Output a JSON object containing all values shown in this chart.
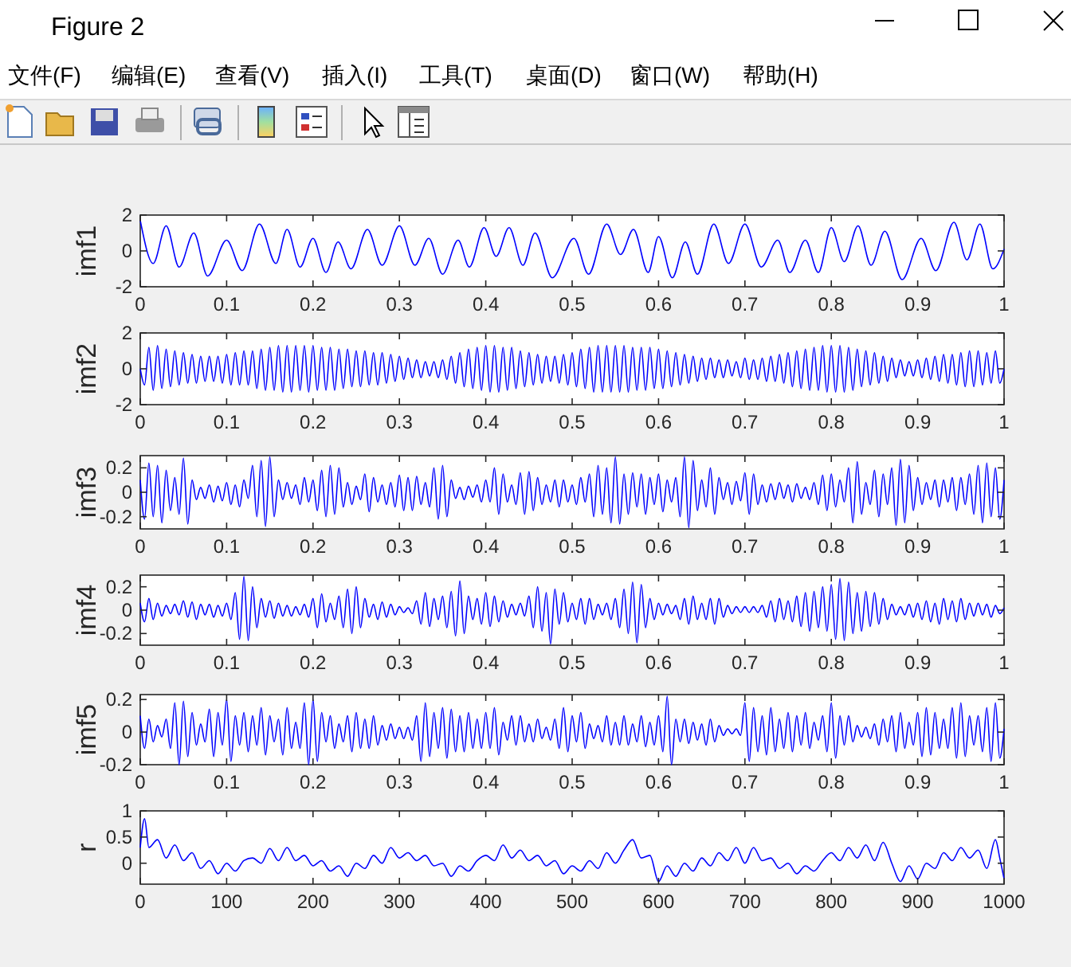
{
  "chart_data": [
    {
      "type": "other",
      "title": "Figure 2",
      "annotations": [
        "文件(F)",
        "编辑(E)",
        "查看(V)",
        "插入(I)",
        "工具(T)",
        "桌面(D)",
        "窗口(W)",
        "帮助(H)"
      ]
    },
    {
      "type": "line",
      "ylabel": "imf1",
      "color": "#0000ff",
      "xlim": [
        0,
        1
      ],
      "ylim": [
        -2,
        2
      ],
      "xticks": [
        0,
        0.1,
        0.2,
        0.3,
        0.4,
        0.5,
        0.6,
        0.7,
        0.8,
        0.9,
        1
      ],
      "yticks": [
        -2,
        0,
        2
      ],
      "x": [
        0,
        0.015,
        0.03,
        0.045,
        0.062,
        0.078,
        0.1,
        0.118,
        0.138,
        0.157,
        0.17,
        0.185,
        0.2,
        0.215,
        0.229,
        0.244,
        0.263,
        0.28,
        0.3,
        0.318,
        0.334,
        0.35,
        0.368,
        0.381,
        0.398,
        0.412,
        0.427,
        0.443,
        0.457,
        0.477,
        0.502,
        0.519,
        0.54,
        0.556,
        0.571,
        0.588,
        0.6,
        0.616,
        0.631,
        0.645,
        0.664,
        0.681,
        0.7,
        0.719,
        0.738,
        0.752,
        0.77,
        0.785,
        0.8,
        0.815,
        0.831,
        0.846,
        0.862,
        0.882,
        0.904,
        0.921,
        0.942,
        0.957,
        0.972,
        0.987,
        1
      ],
      "values": [
        1.7,
        -0.7,
        1.4,
        -0.9,
        1.0,
        -1.4,
        0.6,
        -1.1,
        1.5,
        -0.7,
        1.2,
        -0.9,
        0.7,
        -1.2,
        0.5,
        -1.0,
        1.2,
        -0.8,
        1.4,
        -0.8,
        0.7,
        -1.3,
        0.6,
        -0.9,
        1.3,
        -0.3,
        1.3,
        -0.8,
        1.0,
        -1.5,
        0.7,
        -1.3,
        1.5,
        -0.2,
        1.2,
        -1.2,
        0.8,
        -1.5,
        0.5,
        -1.3,
        1.5,
        -0.7,
        1.5,
        -0.9,
        0.6,
        -1.2,
        0.6,
        -1.2,
        1.3,
        -0.6,
        1.4,
        -0.8,
        1.1,
        -1.6,
        0.7,
        -1.1,
        1.6,
        -0.5,
        1.5,
        -1.0,
        0.1
      ]
    },
    {
      "type": "line",
      "ylabel": "imf2",
      "color": "#0000ff",
      "xlim": [
        0,
        1
      ],
      "ylim": [
        -2,
        2
      ],
      "xticks": [
        0,
        0.1,
        0.2,
        0.3,
        0.4,
        0.5,
        0.6,
        0.7,
        0.8,
        0.9,
        1
      ],
      "yticks": [
        -2,
        0,
        2
      ],
      "x": [
        0,
        0.005,
        0.01,
        0.015,
        0.02,
        0.025,
        0.03,
        0.035,
        0.04,
        0.045,
        0.05,
        0.055,
        0.06,
        0.065,
        0.07,
        0.075,
        0.08,
        0.085,
        0.09,
        0.095,
        0.1,
        0.105,
        0.11,
        0.115,
        0.12,
        0.125,
        0.13,
        0.135,
        0.14,
        0.145,
        0.15,
        0.155,
        0.16,
        0.165,
        0.17,
        0.175,
        0.18,
        0.185,
        0.19,
        0.195,
        0.2,
        0.205,
        0.21,
        0.215,
        0.22,
        0.225,
        0.23,
        0.235,
        0.24,
        0.245,
        0.25,
        0.255,
        0.26,
        0.265,
        0.27,
        0.275,
        0.28,
        0.285,
        0.29,
        0.295,
        0.3,
        0.305,
        0.31,
        0.315,
        0.32,
        0.325,
        0.33,
        0.335,
        0.34,
        0.345,
        0.35,
        0.355,
        0.36,
        0.365,
        0.37,
        0.375,
        0.38,
        0.385,
        0.39,
        0.395,
        0.4,
        0.405,
        0.41,
        0.415,
        0.42,
        0.425,
        0.43,
        0.435,
        0.44,
        0.445,
        0.45,
        0.455,
        0.46,
        0.465,
        0.47,
        0.475,
        0.48,
        0.485,
        0.49,
        0.495,
        0.5,
        0.505,
        0.51,
        0.515,
        0.52,
        0.525,
        0.53,
        0.535,
        0.54,
        0.545,
        0.55,
        0.555,
        0.56,
        0.565,
        0.57,
        0.575,
        0.58,
        0.585,
        0.59,
        0.595,
        0.6,
        0.605,
        0.61,
        0.615,
        0.62,
        0.625,
        0.63,
        0.635,
        0.64,
        0.645,
        0.65,
        0.655,
        0.66,
        0.665,
        0.67,
        0.675,
        0.68,
        0.685,
        0.69,
        0.695,
        0.7,
        0.705,
        0.71,
        0.715,
        0.72,
        0.725,
        0.73,
        0.735,
        0.74,
        0.745,
        0.75,
        0.755,
        0.76,
        0.765,
        0.77,
        0.775,
        0.78,
        0.785,
        0.79,
        0.795,
        0.8,
        0.805,
        0.81,
        0.815,
        0.82,
        0.825,
        0.83,
        0.835,
        0.84,
        0.845,
        0.85,
        0.855,
        0.86,
        0.865,
        0.87,
        0.875,
        0.88,
        0.885,
        0.89,
        0.895,
        0.9,
        0.905,
        0.91,
        0.915,
        0.92,
        0.925,
        0.93,
        0.935,
        0.94,
        0.945,
        0.95,
        0.955,
        0.96,
        0.965,
        0.97,
        0.975,
        0.98,
        0.985,
        0.99,
        0.995,
        1
      ],
      "values": [
        0,
        -0.9,
        1.2,
        -1.2,
        1.3,
        -1.1,
        1.1,
        -1.0,
        1.0,
        -0.9,
        0.9,
        -0.8,
        0.8,
        -0.8,
        0.7,
        -0.7,
        0.7,
        -0.7,
        0.7,
        -0.8,
        0.8,
        -0.9,
        0.9,
        -0.9,
        1.0,
        -0.9,
        1.0,
        -1.1,
        1.1,
        -1.2,
        1.2,
        -1.2,
        1.3,
        -1.3,
        1.3,
        -1.3,
        1.3,
        -1.2,
        1.3,
        -1.3,
        1.3,
        -1.2,
        1.2,
        -1.2,
        1.2,
        -1.2,
        1.1,
        -1.1,
        1.1,
        -1.0,
        1.0,
        -1.0,
        1.0,
        -0.9,
        0.9,
        -0.9,
        0.9,
        -0.8,
        0.8,
        -0.7,
        0.7,
        -0.6,
        0.6,
        -0.5,
        0.5,
        -0.5,
        0.4,
        -0.4,
        0.4,
        -0.5,
        0.5,
        -0.6,
        0.7,
        -0.8,
        0.9,
        -1.0,
        1.1,
        -1.1,
        1.2,
        -1.2,
        1.3,
        -1.3,
        1.3,
        -1.3,
        1.2,
        -1.2,
        1.2,
        -1.1,
        1.0,
        -1.0,
        0.9,
        -0.9,
        0.8,
        -0.8,
        0.7,
        -0.7,
        0.7,
        -0.8,
        0.8,
        -0.9,
        0.9,
        -1.0,
        1.1,
        -1.1,
        1.2,
        -1.3,
        1.3,
        -1.3,
        1.3,
        -1.3,
        1.3,
        -1.3,
        1.3,
        -1.3,
        1.2,
        -1.2,
        1.2,
        -1.2,
        1.2,
        -1.1,
        1.1,
        -1.1,
        1.0,
        -1.0,
        0.9,
        -0.9,
        0.8,
        -0.8,
        0.7,
        -0.7,
        0.6,
        -0.6,
        0.6,
        -0.5,
        0.5,
        -0.5,
        0.5,
        -0.4,
        0.4,
        -0.5,
        0.6,
        -0.6,
        0.5,
        -0.6,
        0.6,
        -0.7,
        0.7,
        -0.7,
        0.8,
        -0.8,
        0.9,
        -1.0,
        1.0,
        -1.1,
        1.1,
        -1.2,
        1.2,
        -1.2,
        1.3,
        -1.3,
        1.3,
        -1.3,
        1.3,
        -1.3,
        1.2,
        -1.2,
        1.1,
        -1.0,
        1.0,
        -0.9,
        0.9,
        -0.8,
        0.7,
        -0.7,
        0.6,
        -0.5,
        0.5,
        -0.4,
        0.4,
        -0.4,
        0.5,
        -0.5,
        0.6,
        -0.6,
        0.7,
        -0.7,
        0.8,
        -0.8,
        0.8,
        -0.9,
        0.9,
        -1.0,
        1.0,
        -1.0,
        1.0,
        -0.9,
        0.9,
        -0.8,
        1.0,
        -0.8,
        0.0
      ]
    },
    {
      "type": "line",
      "ylabel": "imf3",
      "color": "#0000ff",
      "xlim": [
        0,
        1
      ],
      "ylim": [
        -0.3,
        0.3
      ],
      "xticks": [
        0,
        0.1,
        0.2,
        0.3,
        0.4,
        0.5,
        0.6,
        0.7,
        0.8,
        0.9,
        1
      ],
      "yticks": [
        -0.2,
        0,
        0.2
      ],
      "x": [
        0,
        0.005,
        0.01,
        0.015,
        0.02,
        0.025,
        0.03,
        0.035,
        0.04,
        0.045,
        0.05,
        0.055,
        0.06,
        0.065,
        0.07,
        0.075,
        0.08,
        0.085,
        0.09,
        0.095,
        0.1,
        0.105,
        0.11,
        0.115,
        0.12,
        0.125,
        0.13,
        0.135,
        0.14,
        0.145,
        0.15,
        0.155,
        0.16,
        0.165,
        0.17,
        0.175,
        0.18,
        0.185,
        0.19,
        0.195,
        0.2,
        0.205,
        0.21,
        0.215,
        0.22,
        0.225,
        0.23,
        0.235,
        0.24,
        0.245,
        0.25,
        0.255,
        0.26,
        0.265,
        0.27,
        0.275,
        0.28,
        0.285,
        0.29,
        0.295,
        0.3,
        0.305,
        0.31,
        0.315,
        0.32,
        0.325,
        0.33,
        0.335,
        0.34,
        0.345,
        0.35,
        0.355,
        0.36,
        0.365,
        0.37,
        0.375,
        0.38,
        0.385,
        0.39,
        0.395,
        0.4,
        0.405,
        0.41,
        0.415,
        0.42,
        0.425,
        0.43,
        0.435,
        0.44,
        0.445,
        0.45,
        0.455,
        0.46,
        0.465,
        0.47,
        0.475,
        0.48,
        0.485,
        0.49,
        0.495,
        0.5,
        0.505,
        0.51,
        0.515,
        0.52,
        0.525,
        0.53,
        0.535,
        0.54,
        0.545,
        0.55,
        0.555,
        0.56,
        0.565,
        0.57,
        0.575,
        0.58,
        0.585,
        0.59,
        0.595,
        0.6,
        0.605,
        0.61,
        0.615,
        0.62,
        0.625,
        0.63,
        0.635,
        0.64,
        0.645,
        0.65,
        0.655,
        0.66,
        0.665,
        0.67,
        0.675,
        0.68,
        0.685,
        0.69,
        0.695,
        0.7,
        0.705,
        0.71,
        0.715,
        0.72,
        0.725,
        0.73,
        0.735,
        0.74,
        0.745,
        0.75,
        0.755,
        0.76,
        0.765,
        0.77,
        0.775,
        0.78,
        0.785,
        0.79,
        0.795,
        0.8,
        0.805,
        0.81,
        0.815,
        0.82,
        0.825,
        0.83,
        0.835,
        0.84,
        0.845,
        0.85,
        0.855,
        0.86,
        0.865,
        0.87,
        0.875,
        0.88,
        0.885,
        0.89,
        0.895,
        0.9,
        0.905,
        0.91,
        0.915,
        0.92,
        0.925,
        0.93,
        0.935,
        0.94,
        0.945,
        0.95,
        0.955,
        0.96,
        0.965,
        0.97,
        0.975,
        0.98,
        0.985,
        0.99,
        0.995,
        1
      ],
      "values": [
        0.1,
        -0.22,
        0.24,
        -0.2,
        0.22,
        -0.25,
        0.18,
        -0.15,
        0.12,
        -0.18,
        0.28,
        -0.26,
        0.1,
        -0.06,
        0.04,
        -0.05,
        0.06,
        -0.08,
        0.05,
        -0.07,
        0.08,
        -0.1,
        0.06,
        -0.12,
        0.1,
        -0.05,
        0.22,
        -0.2,
        0.26,
        -0.28,
        0.29,
        -0.2,
        0.1,
        -0.06,
        0.08,
        -0.05,
        0.06,
        -0.1,
        0.12,
        -0.08,
        0.1,
        -0.15,
        0.18,
        -0.2,
        0.22,
        -0.18,
        0.2,
        -0.12,
        0.08,
        -0.1,
        0.05,
        -0.06,
        0.15,
        -0.16,
        0.12,
        -0.08,
        0.06,
        -0.1,
        0.08,
        -0.12,
        0.14,
        -0.15,
        0.12,
        -0.15,
        0.13,
        -0.1,
        0.08,
        -0.12,
        0.2,
        -0.22,
        0.22,
        -0.2,
        0.1,
        -0.05,
        0.04,
        -0.06,
        0.05,
        -0.04,
        0.06,
        -0.08,
        0.1,
        -0.08,
        0.2,
        -0.18,
        0.15,
        -0.08,
        0.06,
        -0.1,
        0.16,
        -0.18,
        0.17,
        -0.15,
        0.12,
        -0.1,
        0.06,
        -0.08,
        0.1,
        -0.12,
        0.1,
        -0.08,
        0.06,
        -0.1,
        0.12,
        -0.08,
        0.15,
        -0.2,
        0.22,
        -0.18,
        0.2,
        -0.25,
        0.29,
        -0.26,
        0.15,
        -0.18,
        0.16,
        -0.12,
        0.15,
        -0.18,
        0.12,
        -0.1,
        0.15,
        -0.16,
        0.1,
        -0.08,
        0.12,
        -0.2,
        0.29,
        -0.29,
        0.26,
        -0.15,
        0.1,
        -0.12,
        0.2,
        -0.18,
        0.12,
        -0.06,
        0.08,
        -0.1,
        0.09,
        -0.07,
        0.16,
        -0.18,
        0.15,
        -0.1,
        0.06,
        -0.08,
        0.07,
        -0.06,
        0.08,
        -0.05,
        0.06,
        -0.08,
        0.07,
        -0.05,
        0.04,
        -0.06,
        0.08,
        -0.1,
        0.14,
        -0.15,
        0.15,
        -0.12,
        0.1,
        -0.08,
        0.2,
        -0.25,
        0.25,
        -0.18,
        0.08,
        -0.1,
        0.18,
        -0.2,
        0.15,
        -0.1,
        0.2,
        -0.27,
        0.27,
        -0.25,
        0.22,
        -0.15,
        0.12,
        -0.1,
        0.08,
        -0.06,
        0.1,
        -0.12,
        0.1,
        -0.08,
        0.12,
        -0.15,
        0.12,
        -0.1,
        0.15,
        -0.18,
        0.22,
        -0.25,
        0.24,
        -0.2,
        0.2,
        -0.22,
        0.1
      ]
    },
    {
      "type": "line",
      "ylabel": "imf4",
      "color": "#0000ff",
      "xlim": [
        0,
        1
      ],
      "ylim": [
        -0.3,
        0.3
      ],
      "xticks": [
        0,
        0.1,
        0.2,
        0.3,
        0.4,
        0.5,
        0.6,
        0.7,
        0.8,
        0.9,
        1
      ],
      "yticks": [
        -0.2,
        0,
        0.2
      ],
      "x": [
        0,
        0.005,
        0.01,
        0.015,
        0.02,
        0.025,
        0.03,
        0.035,
        0.04,
        0.045,
        0.05,
        0.055,
        0.06,
        0.065,
        0.07,
        0.075,
        0.08,
        0.085,
        0.09,
        0.095,
        0.1,
        0.105,
        0.11,
        0.115,
        0.12,
        0.125,
        0.13,
        0.135,
        0.14,
        0.145,
        0.15,
        0.155,
        0.16,
        0.165,
        0.17,
        0.175,
        0.18,
        0.185,
        0.19,
        0.195,
        0.2,
        0.205,
        0.21,
        0.215,
        0.22,
        0.225,
        0.23,
        0.235,
        0.24,
        0.245,
        0.25,
        0.255,
        0.26,
        0.265,
        0.27,
        0.275,
        0.28,
        0.285,
        0.29,
        0.295,
        0.3,
        0.305,
        0.31,
        0.315,
        0.32,
        0.325,
        0.33,
        0.335,
        0.34,
        0.345,
        0.35,
        0.355,
        0.36,
        0.365,
        0.37,
        0.375,
        0.38,
        0.385,
        0.39,
        0.395,
        0.4,
        0.405,
        0.41,
        0.415,
        0.42,
        0.425,
        0.43,
        0.435,
        0.44,
        0.445,
        0.45,
        0.455,
        0.46,
        0.465,
        0.47,
        0.475,
        0.48,
        0.485,
        0.49,
        0.495,
        0.5,
        0.505,
        0.51,
        0.515,
        0.52,
        0.525,
        0.53,
        0.535,
        0.54,
        0.545,
        0.55,
        0.555,
        0.56,
        0.565,
        0.57,
        0.575,
        0.58,
        0.585,
        0.59,
        0.595,
        0.6,
        0.605,
        0.61,
        0.615,
        0.62,
        0.625,
        0.63,
        0.635,
        0.64,
        0.645,
        0.65,
        0.655,
        0.66,
        0.665,
        0.67,
        0.675,
        0.68,
        0.685,
        0.69,
        0.695,
        0.7,
        0.705,
        0.71,
        0.715,
        0.72,
        0.725,
        0.73,
        0.735,
        0.74,
        0.745,
        0.75,
        0.755,
        0.76,
        0.765,
        0.77,
        0.775,
        0.78,
        0.785,
        0.79,
        0.795,
        0.8,
        0.805,
        0.81,
        0.815,
        0.82,
        0.825,
        0.83,
        0.835,
        0.84,
        0.845,
        0.85,
        0.855,
        0.86,
        0.865,
        0.87,
        0.875,
        0.88,
        0.885,
        0.89,
        0.895,
        0.9,
        0.905,
        0.91,
        0.915,
        0.92,
        0.925,
        0.93,
        0.935,
        0.94,
        0.945,
        0.95,
        0.955,
        0.96,
        0.965,
        0.97,
        0.975,
        0.98,
        0.985,
        0.99,
        0.995,
        1
      ],
      "values": [
        0.06,
        -0.1,
        0.1,
        -0.08,
        0.06,
        -0.05,
        0.04,
        -0.03,
        0.05,
        -0.04,
        0.08,
        -0.06,
        0.07,
        -0.08,
        0.05,
        -0.04,
        0.05,
        -0.06,
        0.04,
        -0.05,
        0.06,
        -0.08,
        0.15,
        -0.25,
        0.29,
        -0.26,
        0.2,
        -0.15,
        0.1,
        -0.06,
        0.08,
        -0.07,
        0.06,
        -0.05,
        0.04,
        -0.05,
        0.03,
        -0.04,
        0.05,
        -0.06,
        0.1,
        -0.15,
        0.14,
        -0.1,
        0.06,
        -0.08,
        0.12,
        -0.15,
        0.18,
        -0.2,
        0.2,
        -0.15,
        0.1,
        -0.06,
        0.05,
        -0.08,
        0.07,
        -0.06,
        0.05,
        -0.04,
        0.03,
        -0.02,
        0.02,
        -0.03,
        0.08,
        -0.12,
        0.15,
        -0.14,
        0.1,
        -0.08,
        0.12,
        -0.15,
        0.16,
        -0.22,
        0.25,
        -0.2,
        0.12,
        -0.08,
        0.1,
        -0.12,
        0.15,
        -0.14,
        0.12,
        -0.1,
        0.08,
        -0.06,
        0.05,
        -0.04,
        0.06,
        -0.05,
        0.12,
        -0.15,
        0.2,
        -0.18,
        0.15,
        -0.29,
        0.18,
        -0.12,
        0.15,
        -0.1,
        0.06,
        -0.08,
        0.1,
        -0.12,
        0.1,
        -0.08,
        0.05,
        -0.04,
        0.06,
        -0.08,
        0.1,
        -0.15,
        0.18,
        -0.2,
        0.24,
        -0.28,
        0.22,
        -0.15,
        0.1,
        -0.08,
        0.06,
        -0.04,
        0.05,
        -0.03,
        0.04,
        -0.08,
        0.1,
        -0.12,
        0.12,
        -0.08,
        0.06,
        -0.08,
        0.1,
        -0.12,
        0.1,
        -0.06,
        0.04,
        -0.03,
        0.03,
        -0.02,
        0.03,
        -0.02,
        0.03,
        -0.02,
        0.04,
        -0.06,
        0.08,
        -0.1,
        0.1,
        -0.08,
        0.08,
        -0.1,
        0.12,
        -0.14,
        0.15,
        -0.18,
        0.16,
        -0.15,
        0.2,
        -0.18,
        0.22,
        -0.25,
        0.27,
        -0.26,
        0.24,
        -0.2,
        0.15,
        -0.18,
        0.16,
        -0.14,
        0.15,
        -0.12,
        0.1,
        -0.08,
        0.05,
        -0.04,
        0.03,
        -0.04,
        0.05,
        -0.06,
        0.06,
        -0.08,
        0.08,
        -0.1,
        0.06,
        -0.12,
        0.1,
        -0.08,
        0.08,
        -0.1,
        0.1,
        -0.08,
        0.06,
        -0.05,
        0.06,
        -0.04,
        0.05,
        -0.06,
        0.04,
        -0.03,
        0.02
      ]
    },
    {
      "type": "line",
      "ylabel": "imf5",
      "color": "#0000ff",
      "xlim": [
        0,
        1
      ],
      "ylim": [
        -0.2,
        0.23
      ],
      "xticks": [
        0,
        0.1,
        0.2,
        0.3,
        0.4,
        0.5,
        0.6,
        0.7,
        0.8,
        0.9,
        1
      ],
      "yticks": [
        -0.2,
        0,
        0.2
      ],
      "x": [
        0,
        0.005,
        0.01,
        0.015,
        0.02,
        0.025,
        0.03,
        0.035,
        0.04,
        0.045,
        0.05,
        0.055,
        0.06,
        0.065,
        0.07,
        0.075,
        0.08,
        0.085,
        0.09,
        0.095,
        0.1,
        0.105,
        0.11,
        0.115,
        0.12,
        0.125,
        0.13,
        0.135,
        0.14,
        0.145,
        0.15,
        0.155,
        0.16,
        0.165,
        0.17,
        0.175,
        0.18,
        0.185,
        0.19,
        0.195,
        0.2,
        0.205,
        0.21,
        0.215,
        0.22,
        0.225,
        0.23,
        0.235,
        0.24,
        0.245,
        0.25,
        0.255,
        0.26,
        0.265,
        0.27,
        0.275,
        0.28,
        0.285,
        0.29,
        0.295,
        0.3,
        0.305,
        0.31,
        0.315,
        0.32,
        0.325,
        0.33,
        0.335,
        0.34,
        0.345,
        0.35,
        0.355,
        0.36,
        0.365,
        0.37,
        0.375,
        0.38,
        0.385,
        0.39,
        0.395,
        0.4,
        0.405,
        0.41,
        0.415,
        0.42,
        0.425,
        0.43,
        0.435,
        0.44,
        0.445,
        0.45,
        0.455,
        0.46,
        0.465,
        0.47,
        0.475,
        0.48,
        0.485,
        0.49,
        0.495,
        0.5,
        0.505,
        0.51,
        0.515,
        0.52,
        0.525,
        0.53,
        0.535,
        0.54,
        0.545,
        0.55,
        0.555,
        0.56,
        0.565,
        0.57,
        0.575,
        0.58,
        0.585,
        0.59,
        0.595,
        0.6,
        0.605,
        0.61,
        0.615,
        0.62,
        0.625,
        0.63,
        0.635,
        0.64,
        0.645,
        0.65,
        0.655,
        0.66,
        0.665,
        0.67,
        0.675,
        0.68,
        0.685,
        0.69,
        0.695,
        0.7,
        0.705,
        0.71,
        0.715,
        0.72,
        0.725,
        0.73,
        0.735,
        0.74,
        0.745,
        0.75,
        0.755,
        0.76,
        0.765,
        0.77,
        0.775,
        0.78,
        0.785,
        0.79,
        0.795,
        0.8,
        0.805,
        0.81,
        0.815,
        0.82,
        0.825,
        0.83,
        0.835,
        0.84,
        0.845,
        0.85,
        0.855,
        0.86,
        0.865,
        0.87,
        0.875,
        0.88,
        0.885,
        0.89,
        0.895,
        0.9,
        0.905,
        0.91,
        0.915,
        0.92,
        0.925,
        0.93,
        0.935,
        0.94,
        0.945,
        0.95,
        0.955,
        0.96,
        0.965,
        0.97,
        0.975,
        0.98,
        0.985,
        0.99,
        0.995,
        1
      ],
      "values": [
        0.1,
        -0.1,
        0.08,
        -0.06,
        0.04,
        -0.03,
        0.08,
        -0.1,
        0.18,
        -0.2,
        0.19,
        -0.15,
        0.12,
        -0.08,
        0.05,
        -0.06,
        0.14,
        -0.15,
        0.12,
        -0.08,
        0.2,
        -0.18,
        0.1,
        -0.08,
        0.12,
        -0.12,
        0.1,
        -0.08,
        0.15,
        -0.14,
        0.1,
        -0.06,
        0.08,
        -0.14,
        0.15,
        -0.1,
        0.06,
        -0.1,
        0.18,
        -0.2,
        0.2,
        -0.18,
        0.12,
        -0.06,
        0.1,
        -0.1,
        0.05,
        -0.06,
        0.1,
        -0.12,
        0.12,
        -0.1,
        0.08,
        -0.1,
        0.1,
        -0.08,
        0.04,
        -0.05,
        0.05,
        -0.04,
        0.03,
        -0.04,
        0.03,
        -0.05,
        0.1,
        -0.18,
        0.18,
        -0.15,
        0.12,
        -0.1,
        0.15,
        -0.16,
        0.14,
        -0.12,
        0.1,
        -0.12,
        0.12,
        -0.1,
        0.08,
        -0.1,
        0.12,
        -0.1,
        0.15,
        -0.14,
        0.06,
        -0.05,
        0.1,
        -0.08,
        0.1,
        -0.06,
        0.05,
        -0.06,
        0.08,
        -0.04,
        0.03,
        -0.05,
        0.08,
        -0.1,
        0.15,
        -0.12,
        0.1,
        -0.06,
        0.12,
        -0.1,
        0.05,
        -0.04,
        0.04,
        -0.06,
        0.1,
        -0.08,
        0.06,
        -0.08,
        0.1,
        -0.08,
        0.05,
        -0.06,
        0.1,
        -0.09,
        0.06,
        -0.08,
        0.1,
        -0.12,
        0.22,
        -0.2,
        0.08,
        -0.06,
        0.08,
        -0.07,
        0.06,
        -0.05,
        0.05,
        -0.08,
        0.08,
        -0.06,
        0.04,
        -0.02,
        0.02,
        -0.01,
        0.02,
        -0.02,
        0.18,
        -0.18,
        0.15,
        -0.12,
        0.1,
        -0.14,
        0.15,
        -0.12,
        0.08,
        -0.1,
        0.12,
        -0.12,
        0.1,
        -0.08,
        0.12,
        -0.1,
        0.06,
        -0.05,
        0.1,
        -0.12,
        0.18,
        -0.16,
        0.1,
        -0.08,
        0.1,
        -0.06,
        0.04,
        -0.03,
        0.03,
        -0.04,
        0.05,
        -0.08,
        0.08,
        -0.06,
        0.1,
        -0.12,
        0.12,
        -0.1,
        0.06,
        -0.08,
        0.12,
        -0.15,
        0.15,
        -0.14,
        0.12,
        -0.1,
        0.08,
        -0.1,
        0.15,
        -0.16,
        0.18,
        -0.15,
        0.1,
        -0.08,
        0.1,
        -0.12,
        0.15,
        -0.18,
        0.18,
        -0.16,
        0.02
      ]
    },
    {
      "type": "line",
      "ylabel": "r",
      "color": "#0000ff",
      "xlim": [
        0,
        1000
      ],
      "ylim": [
        -0.4,
        1
      ],
      "xticks": [
        0,
        100,
        200,
        300,
        400,
        500,
        600,
        700,
        800,
        900,
        1000
      ],
      "yticks": [
        0,
        0.5,
        1
      ],
      "x": [
        0,
        5,
        10,
        20,
        30,
        40,
        50,
        60,
        70,
        80,
        90,
        100,
        110,
        120,
        130,
        140,
        150,
        160,
        170,
        180,
        190,
        200,
        210,
        220,
        230,
        240,
        250,
        260,
        270,
        280,
        290,
        300,
        310,
        320,
        330,
        340,
        350,
        360,
        370,
        380,
        390,
        400,
        410,
        420,
        430,
        440,
        450,
        460,
        470,
        480,
        490,
        500,
        510,
        520,
        530,
        540,
        550,
        560,
        570,
        580,
        590,
        600,
        610,
        620,
        630,
        640,
        650,
        660,
        670,
        680,
        690,
        700,
        710,
        720,
        730,
        740,
        750,
        760,
        770,
        780,
        790,
        800,
        810,
        820,
        830,
        840,
        850,
        860,
        870,
        880,
        890,
        900,
        910,
        920,
        930,
        940,
        950,
        960,
        970,
        980,
        990,
        995,
        1000
      ],
      "values": [
        0.3,
        0.85,
        0.3,
        0.45,
        0.1,
        0.35,
        0.05,
        0.2,
        -0.1,
        0.05,
        -0.2,
        0.0,
        -0.15,
        0.05,
        0.1,
        0.0,
        0.28,
        0.05,
        0.3,
        0.05,
        0.15,
        -0.05,
        0.05,
        -0.15,
        -0.05,
        -0.25,
        0.0,
        -0.1,
        0.15,
        0.0,
        0.3,
        0.1,
        0.2,
        0.05,
        0.15,
        -0.05,
        0.0,
        -0.25,
        -0.05,
        -0.15,
        0.05,
        0.15,
        0.05,
        0.35,
        0.1,
        0.25,
        0.05,
        0.15,
        -0.05,
        0.05,
        -0.2,
        -0.05,
        -0.15,
        0.05,
        -0.1,
        0.2,
        0.0,
        0.25,
        0.45,
        0.1,
        0.15,
        -0.35,
        -0.05,
        -0.25,
        0.0,
        -0.15,
        0.1,
        -0.05,
        0.2,
        0.05,
        0.3,
        0.0,
        0.3,
        0.05,
        0.1,
        -0.1,
        0.0,
        -0.2,
        -0.05,
        -0.15,
        0.05,
        0.2,
        0.05,
        0.3,
        0.1,
        0.35,
        0.05,
        0.4,
        0.0,
        -0.35,
        -0.05,
        -0.3,
        0.0,
        -0.1,
        0.2,
        0.05,
        0.3,
        0.1,
        0.25,
        -0.1,
        0.45,
        0.1,
        -0.3
      ]
    }
  ]
}
